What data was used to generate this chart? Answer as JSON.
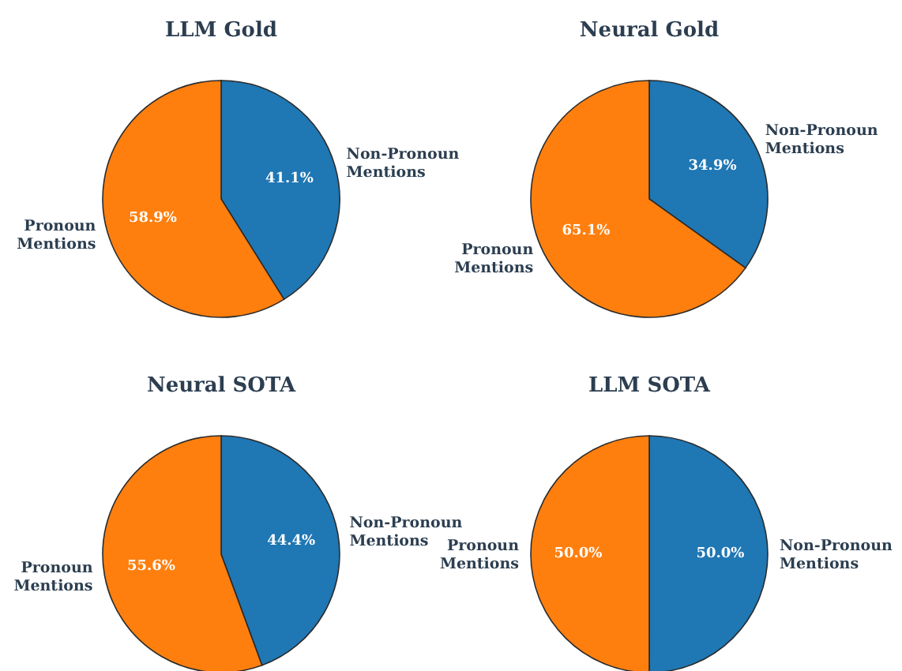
{
  "chart_data": [
    {
      "type": "pie",
      "title": "LLM Gold",
      "categories": [
        "Non-Pronoun\nMentions",
        "Pronoun\nMentions"
      ],
      "values": [
        41.1,
        58.9
      ],
      "value_labels": [
        "41.1%",
        "58.9%"
      ],
      "colors": [
        "#1f77b4",
        "#ff7f0e"
      ]
    },
    {
      "type": "pie",
      "title": "Neural Gold",
      "categories": [
        "Non-Pronoun\nMentions",
        "Pronoun\nMentions"
      ],
      "values": [
        34.9,
        65.1
      ],
      "value_labels": [
        "34.9%",
        "65.1%"
      ],
      "colors": [
        "#1f77b4",
        "#ff7f0e"
      ]
    },
    {
      "type": "pie",
      "title": "Neural SOTA",
      "categories": [
        "Non-Pronoun\nMentions",
        "Pronoun\nMentions"
      ],
      "values": [
        44.4,
        55.6
      ],
      "value_labels": [
        "44.4%",
        "55.6%"
      ],
      "colors": [
        "#1f77b4",
        "#ff7f0e"
      ]
    },
    {
      "type": "pie",
      "title": "LLM SOTA",
      "categories": [
        "Non-Pronoun\nMentions",
        "Pronoun\nMentions"
      ],
      "values": [
        50.0,
        50.0
      ],
      "value_labels": [
        "50.0%",
        "50.0%"
      ],
      "colors": [
        "#1f77b4",
        "#ff7f0e"
      ]
    }
  ]
}
